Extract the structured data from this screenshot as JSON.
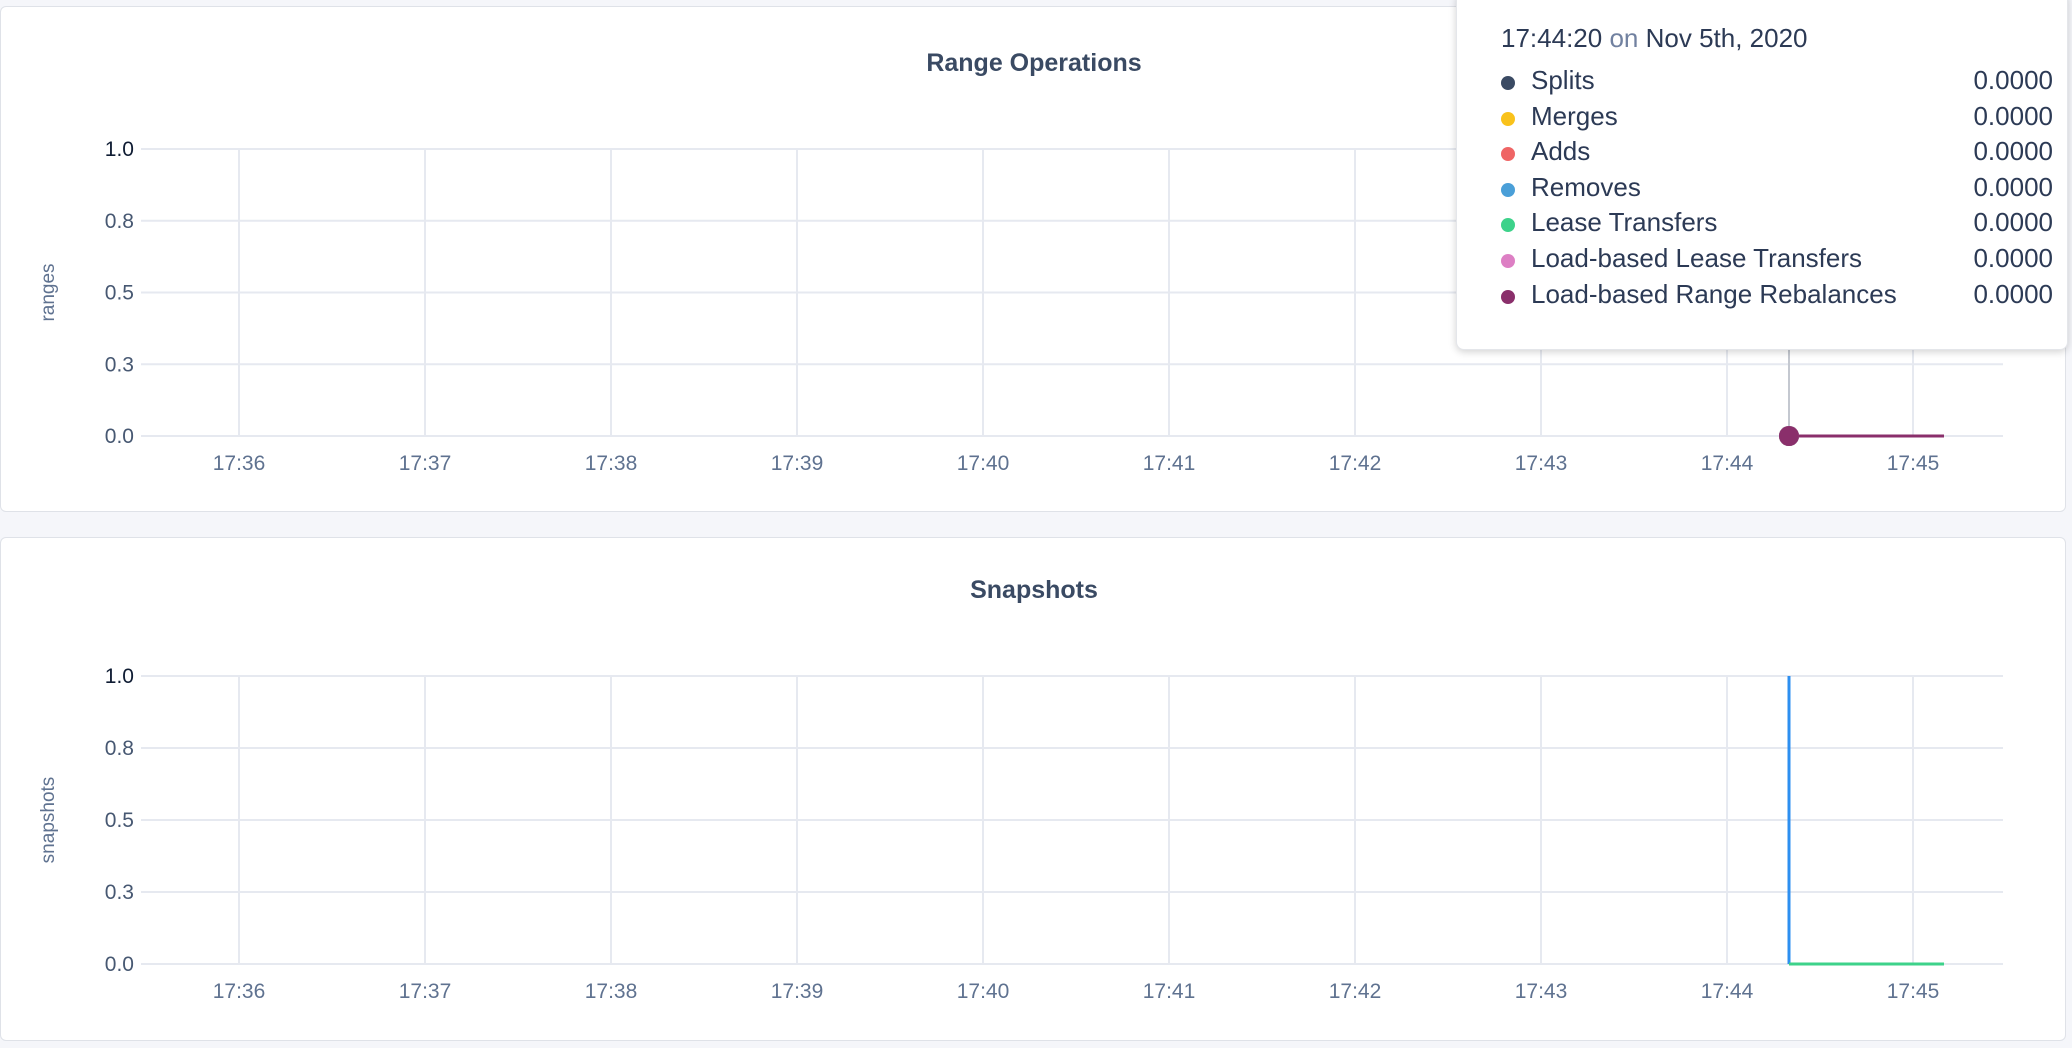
{
  "chart_data": [
    {
      "type": "line",
      "title": "Range Operations",
      "ylabel": "ranges",
      "xlabel": "",
      "ylim": [
        0,
        1.0
      ],
      "yticks": [
        "0.0",
        "0.3",
        "0.5",
        "0.8",
        "1.0"
      ],
      "ytick_values": [
        0,
        0.25,
        0.5,
        0.75,
        1.0
      ],
      "xticks": [
        "17:36",
        "17:37",
        "17:38",
        "17:39",
        "17:40",
        "17:41",
        "17:42",
        "17:43",
        "17:44",
        "17:45"
      ],
      "grid": true,
      "series": [
        {
          "name": "Splits",
          "color": "#3a4a63",
          "x": [
            "17:44:20",
            "17:45:10"
          ],
          "values": [
            0,
            0
          ]
        },
        {
          "name": "Merges",
          "color": "#f9c21b",
          "x": [
            "17:44:20",
            "17:45:10"
          ],
          "values": [
            0,
            0
          ]
        },
        {
          "name": "Adds",
          "color": "#ef6565",
          "x": [
            "17:44:20",
            "17:45:10"
          ],
          "values": [
            0,
            0
          ]
        },
        {
          "name": "Removes",
          "color": "#4a9fd8",
          "x": [
            "17:44:20",
            "17:45:10"
          ],
          "values": [
            0,
            0
          ]
        },
        {
          "name": "Lease Transfers",
          "color": "#3dd28a",
          "x": [
            "17:44:20",
            "17:45:10"
          ],
          "values": [
            0,
            0
          ]
        },
        {
          "name": "Load-based Lease Transfers",
          "color": "#dd7fc4",
          "x": [
            "17:44:20",
            "17:45:10"
          ],
          "values": [
            0,
            0
          ]
        },
        {
          "name": "Load-based Range Rebalances",
          "color": "#8a2f6b",
          "x": [
            "17:44:20",
            "17:45:10"
          ],
          "values": [
            0,
            0
          ]
        }
      ],
      "hover_x": "17:44:20"
    },
    {
      "type": "line",
      "title": "Snapshots",
      "ylabel": "snapshots",
      "xlabel": "",
      "ylim": [
        0,
        1.0
      ],
      "yticks": [
        "0.0",
        "0.3",
        "0.5",
        "0.8",
        "1.0"
      ],
      "ytick_values": [
        0,
        0.25,
        0.5,
        0.75,
        1.0
      ],
      "xticks": [
        "17:36",
        "17:37",
        "17:38",
        "17:39",
        "17:40",
        "17:41",
        "17:42",
        "17:43",
        "17:44",
        "17:45"
      ],
      "grid": true,
      "series": [
        {
          "color": "#2d8ff0",
          "x": [
            "17:44:20",
            "17:44:20"
          ],
          "values": [
            1.0,
            0
          ]
        },
        {
          "color": "#3dd28a",
          "x": [
            "17:44:20",
            "17:45:10"
          ],
          "values": [
            0,
            0
          ]
        }
      ]
    }
  ],
  "tooltip": {
    "time": "17:44:20",
    "on": "on",
    "date": "Nov 5th, 2020",
    "rows": [
      {
        "name": "Splits",
        "value": "0.0000",
        "color": "#3a4a63"
      },
      {
        "name": "Merges",
        "value": "0.0000",
        "color": "#f9c21b"
      },
      {
        "name": "Adds",
        "value": "0.0000",
        "color": "#ef6565"
      },
      {
        "name": "Removes",
        "value": "0.0000",
        "color": "#4a9fd8"
      },
      {
        "name": "Lease Transfers",
        "value": "0.0000",
        "color": "#3dd28a"
      },
      {
        "name": "Load-based Lease Transfers",
        "value": "0.0000",
        "color": "#dd7fc4"
      },
      {
        "name": "Load-based Range Rebalances",
        "value": "0.0000",
        "color": "#8a2f6b"
      }
    ]
  }
}
